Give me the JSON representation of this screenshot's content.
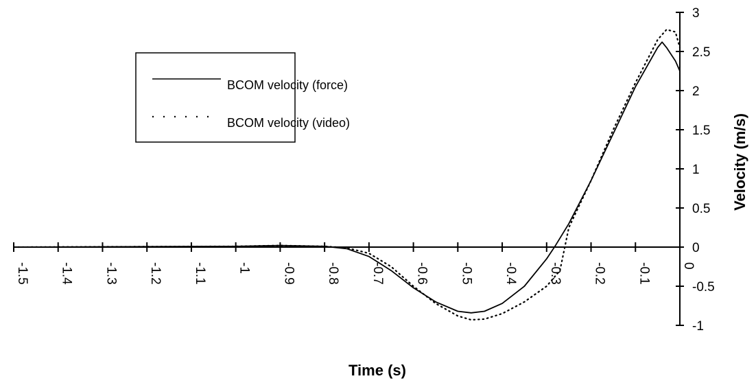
{
  "chart_data": {
    "type": "line",
    "xlabel": "Time (s)",
    "ylabel": "Velocity (m/s)",
    "xlim": [
      -1.5,
      0
    ],
    "ylim": [
      -1,
      3
    ],
    "x_ticks": [
      -1.5,
      -1.4,
      -1.3,
      -1.2,
      -1.1,
      -1,
      -0.9,
      -0.8,
      -0.7,
      -0.6,
      -0.5,
      -0.4,
      -0.3,
      -0.2,
      -0.1,
      0
    ],
    "x_tick_labels": [
      "-1.5",
      "-1.4",
      "-1.3",
      "-1.2",
      "-1.1",
      "-1",
      "-0.9",
      "-0.8",
      "-0.7",
      "-0.6",
      "-0.5",
      "-0.4",
      "-0.3",
      "-0.2",
      "-0.1",
      "0"
    ],
    "y_ticks": [
      -1,
      -0.5,
      0,
      0.5,
      1,
      1.5,
      2,
      2.5,
      3
    ],
    "y_tick_labels": [
      "-1",
      "-0.5",
      "0",
      "0.5",
      "1",
      "1.5",
      "2",
      "2.5",
      "3"
    ],
    "legend_position": "top-left",
    "grid": false,
    "series": [
      {
        "name": "BCOM velocity (force)",
        "style": "solid",
        "color": "#000000",
        "x": [
          -1.5,
          -1.0,
          -0.9,
          -0.8,
          -0.75,
          -0.7,
          -0.65,
          -0.6,
          -0.55,
          -0.5,
          -0.47,
          -0.44,
          -0.4,
          -0.35,
          -0.3,
          -0.28,
          -0.25,
          -0.2,
          -0.15,
          -0.1,
          -0.05,
          -0.04,
          -0.03,
          -0.01,
          0
        ],
        "y": [
          0,
          0.01,
          0.02,
          0.01,
          -0.02,
          -0.12,
          -0.3,
          -0.52,
          -0.7,
          -0.82,
          -0.84,
          -0.82,
          -0.72,
          -0.5,
          -0.15,
          0.02,
          0.3,
          0.85,
          1.45,
          2.05,
          2.55,
          2.62,
          2.55,
          2.38,
          2.25
        ]
      },
      {
        "name": "BCOM velocity (video)",
        "style": "dotted",
        "color": "#000000",
        "x": [
          -1.5,
          -1.0,
          -0.9,
          -0.8,
          -0.75,
          -0.7,
          -0.65,
          -0.6,
          -0.55,
          -0.5,
          -0.47,
          -0.44,
          -0.4,
          -0.35,
          -0.3,
          -0.27,
          -0.25,
          -0.2,
          -0.15,
          -0.1,
          -0.05,
          -0.03,
          -0.01,
          0
        ],
        "y": [
          0,
          0.01,
          0.02,
          0.01,
          -0.01,
          -0.08,
          -0.25,
          -0.5,
          -0.72,
          -0.88,
          -0.93,
          -0.92,
          -0.85,
          -0.7,
          -0.5,
          -0.3,
          0.25,
          0.85,
          1.5,
          2.1,
          2.65,
          2.78,
          2.75,
          2.55
        ]
      }
    ]
  }
}
